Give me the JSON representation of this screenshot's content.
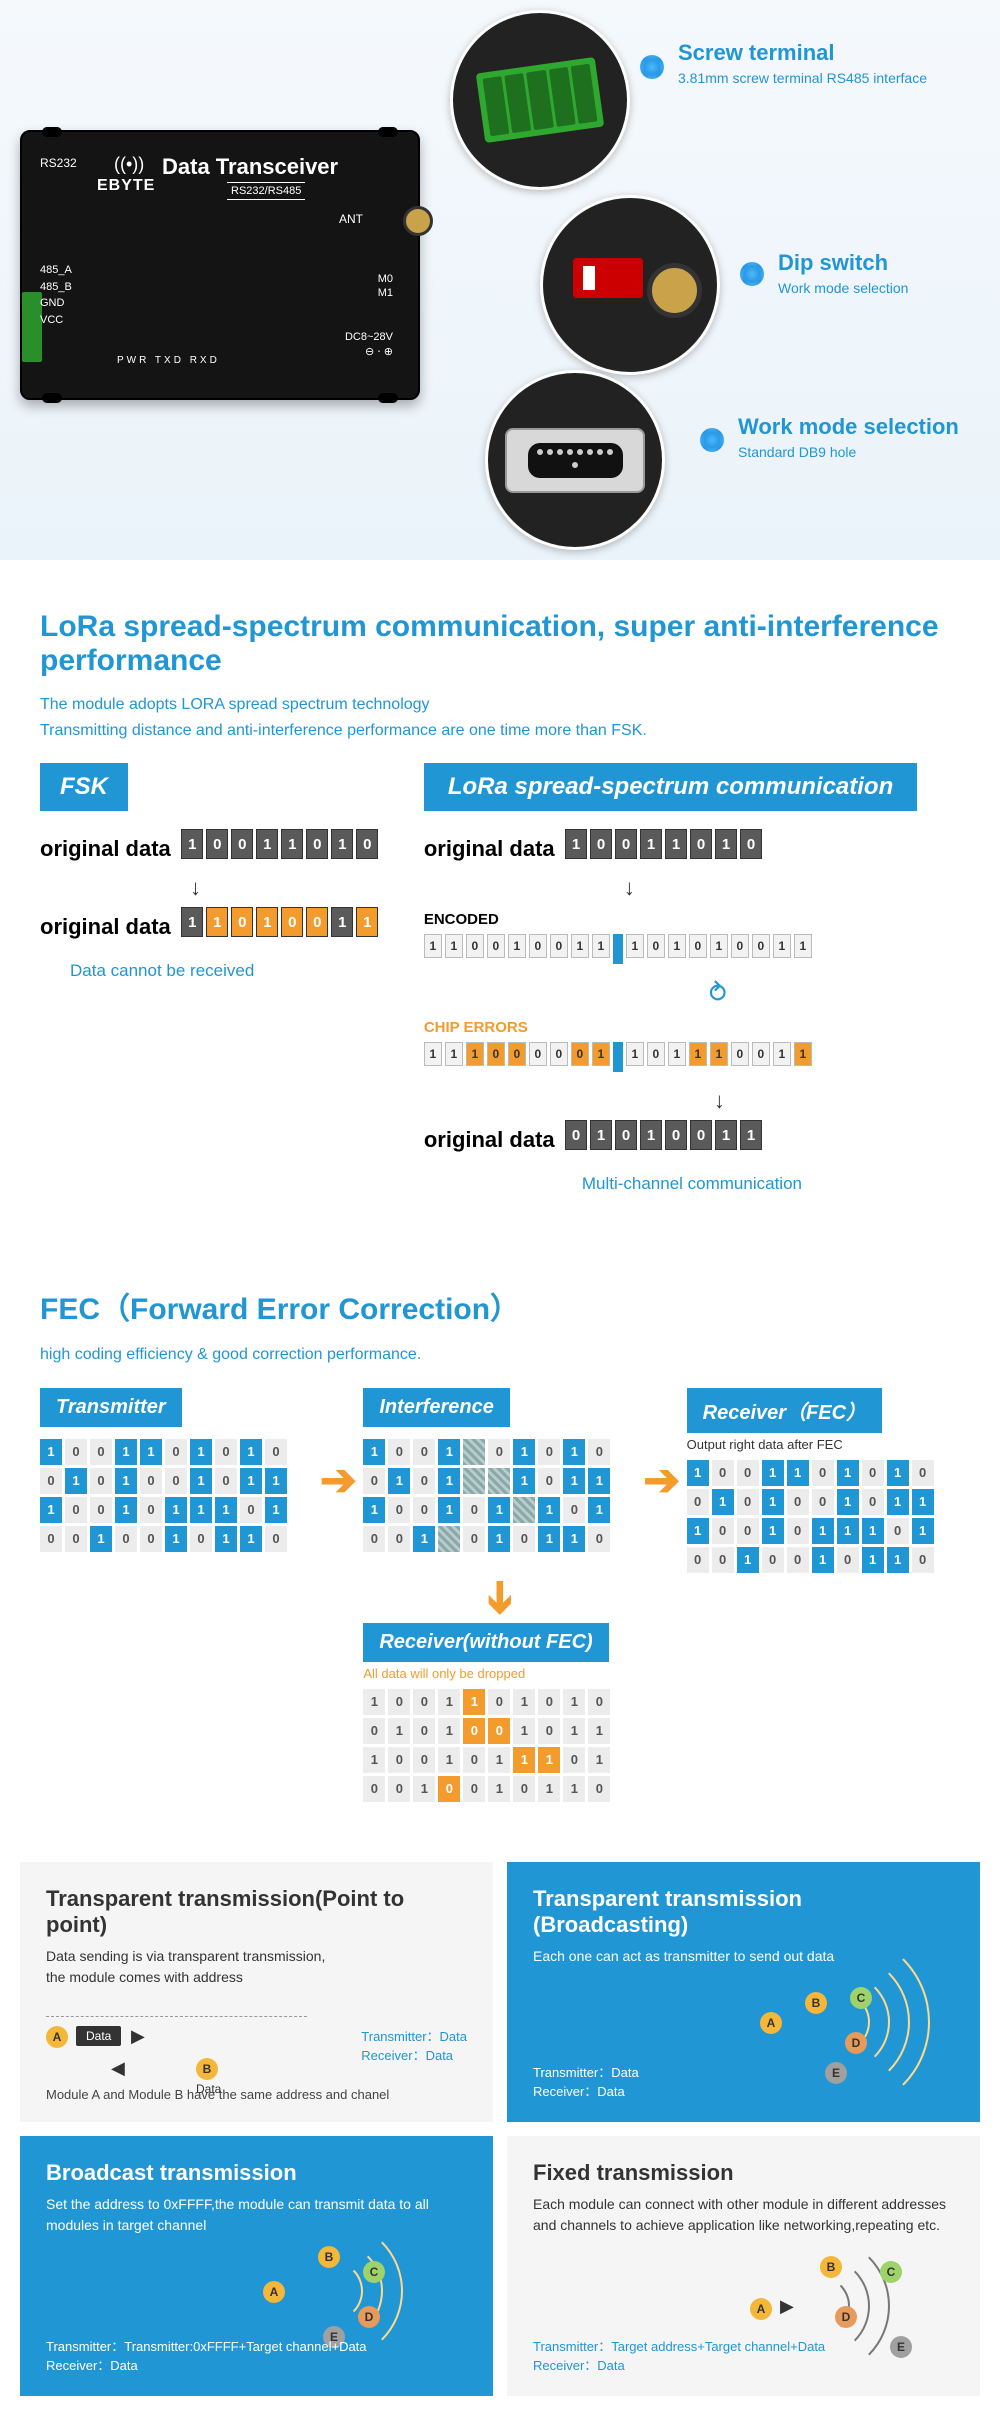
{
  "hero": {
    "product": {
      "title": "Data Transceiver",
      "subtitle": "RS232/RS485",
      "logo": "EBYTE",
      "rs232": "RS232",
      "ant": "ANT",
      "m0": "M0",
      "m1": "M1",
      "dc": "DC8~28V",
      "dc_sym": "⊖ ⋅ ⊕",
      "pins": [
        "485_A",
        "485_B",
        "GND",
        "VCC"
      ],
      "leds": "PWR  TXD  RXD"
    },
    "callouts": [
      {
        "title": "Screw terminal",
        "desc": "3.81mm screw terminal RS485 interface"
      },
      {
        "title": "Dip switch",
        "desc": "Work mode selection"
      },
      {
        "title": "Work mode selection",
        "desc": "Standard DB9 hole"
      }
    ]
  },
  "lora": {
    "title": "LoRa spread-spectrum communication, super anti-interference performance",
    "sub1": "The module adopts LORA spread spectrum technology",
    "sub2": "Transmitting distance and anti-interference performance are one time more than FSK.",
    "fsk": {
      "tag": "FSK",
      "row1_label": "original data",
      "row1": [
        "1",
        "0",
        "0",
        "1",
        "1",
        "0",
        "1",
        "0"
      ],
      "row2_label": "original data",
      "row2": [
        "1",
        "1",
        "0",
        "1",
        "0",
        "0",
        "1",
        "1"
      ],
      "row2_err": [
        0,
        1,
        1,
        1,
        1,
        1,
        0,
        1
      ],
      "caption": "Data cannot be received"
    },
    "spread": {
      "tag": "LoRa spread-spectrum communication",
      "row1_label": "original data",
      "row1": [
        "1",
        "0",
        "0",
        "1",
        "1",
        "0",
        "1",
        "0"
      ],
      "enc_label": "ENCODED",
      "enc": [
        "1",
        "1",
        "0",
        "0",
        "1",
        "0",
        "0",
        "1",
        "1",
        "|",
        "1",
        "0",
        "1",
        "0",
        "1",
        "0",
        "0",
        "1",
        "1"
      ],
      "chip_label": "CHIP ERRORS",
      "chip": [
        "1",
        "1",
        "1",
        "0",
        "0",
        "0",
        "0",
        "0",
        "1",
        "|",
        "1",
        "0",
        "1",
        "1",
        "1",
        "0",
        "0",
        "1",
        "1"
      ],
      "chip_err": [
        0,
        0,
        1,
        1,
        1,
        0,
        0,
        1,
        1,
        0,
        0,
        0,
        0,
        1,
        1,
        0,
        0,
        0,
        1
      ],
      "row3_label": "original data",
      "row3": [
        "0",
        "1",
        "0",
        "1",
        "0",
        "0",
        "1",
        "1"
      ],
      "caption": "Multi-channel communication"
    }
  },
  "fec": {
    "title": "FEC（Forward Error Correction）",
    "sub": "high coding efficiency & good correction performance.",
    "tx_tag": "Transmitter",
    "int_tag": "Interference",
    "rx_tag": "Receiver（FEC）",
    "rx_sub": "Output right data after FEC",
    "rxno_tag": "Receiver(without FEC)",
    "rxno_sub": "All data will only be dropped",
    "rows": [
      [
        "1",
        "0",
        "0",
        "1",
        "1",
        "0",
        "1",
        "0",
        "1",
        "0"
      ],
      [
        "0",
        "1",
        "0",
        "1",
        "0",
        "0",
        "1",
        "0",
        "1",
        "1"
      ],
      [
        "1",
        "0",
        "0",
        "1",
        "0",
        "1",
        "1",
        "1",
        "0",
        "1"
      ],
      [
        "0",
        "0",
        "1",
        "0",
        "0",
        "1",
        "0",
        "1",
        "1",
        "0"
      ]
    ],
    "noise_cells": [
      [
        0,
        4
      ],
      [
        1,
        4
      ],
      [
        1,
        5
      ],
      [
        2,
        6
      ],
      [
        3,
        3
      ]
    ],
    "err_cells": [
      [
        0,
        4
      ],
      [
        1,
        4
      ],
      [
        1,
        5
      ],
      [
        2,
        6
      ],
      [
        2,
        7
      ],
      [
        3,
        3
      ]
    ]
  },
  "tx": {
    "p2p": {
      "title": "Transparent transmission(Point to point)",
      "desc": "Data sending is via transparent transmission,\nthe module comes with address",
      "data_label": "Data",
      "tline": "Transmitter：Data",
      "rline": "Receiver：Data",
      "note": "Module A and Module B  have the same address and chanel"
    },
    "bcast_t": {
      "title": "Transparent transmission (Broadcasting)",
      "desc": "Each one can act as transmitter to send out data",
      "tline": "Transmitter：Data",
      "rline": "Receiver：Data"
    },
    "bcast": {
      "title": "Broadcast transmission",
      "desc": "Set the address to 0xFFFF,the module can transmit data to all modules in target channel",
      "tline": "Transmitter：Transmitter:0xFFFF+Target channel+Data",
      "rline": "Receiver：Data"
    },
    "fixed": {
      "title": "Fixed transmission",
      "desc": "Each module can connect with other module in different addresses and channels to achieve application like networking,repeating etc.",
      "tline": "Transmitter：Target address+Target channel+Data",
      "rline": "Receiver：Data"
    },
    "labels": {
      "A": "A",
      "B": "B",
      "C": "C",
      "D": "D",
      "E": "E"
    }
  },
  "colors": {
    "blue": "#2196d4",
    "orange": "#f49b2e",
    "node_yellow": "#f4b73a"
  }
}
